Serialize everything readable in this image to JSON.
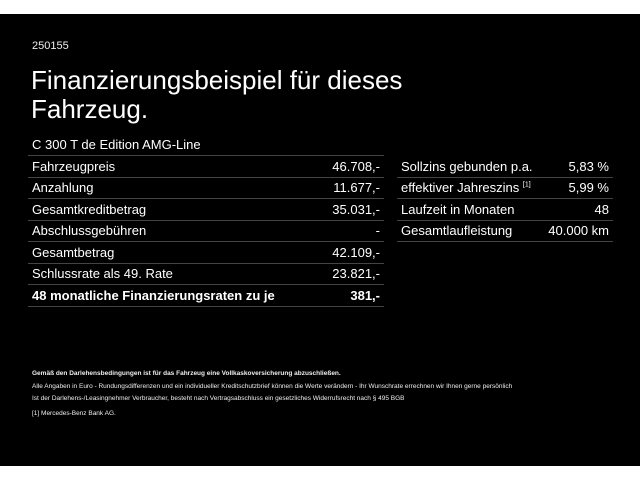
{
  "code": "250155",
  "title": "Finanzierungsbeispiel für dieses Fahrzeug.",
  "model": "C 300 T de Edition AMG-Line",
  "left_rows": [
    {
      "label": "Fahrzeugpreis",
      "value": "46.708,-"
    },
    {
      "label": "Anzahlung",
      "value": "11.677,-"
    },
    {
      "label": "Gesamtkreditbetrag",
      "value": "35.031,-"
    },
    {
      "label": "Abschlussgebühren",
      "value": "-"
    },
    {
      "label": "Gesamtbetrag",
      "value": "42.109,-"
    },
    {
      "label": "Schlussrate als 49. Rate",
      "value": "23.821,-"
    },
    {
      "label": "48 monatliche Finanzierungsraten zu je",
      "value": "381,-"
    }
  ],
  "right_rows": [
    {
      "label": "Sollzins gebunden p.a.",
      "value": "5,83 %"
    },
    {
      "label": "effektiver Jahreszins",
      "sup": "[1]",
      "value": "5,99 %"
    },
    {
      "label": "Laufzeit in Monaten",
      "value": "48"
    },
    {
      "label": "Gesamtlaufleistung",
      "value": "40.000 km"
    }
  ],
  "notes": {
    "bold": "Gemäß den Darlehensbedingungen ist für das Fahrzeug eine Vollkaskoversicherung abzuschließen.",
    "line1": "Alle Angaben in Euro - Rundungsdifferenzen und ein individueller Kreditschutzbrief können die Werte verändern - Ihr Wunschrate errechnen wir Ihnen gerne persönlich",
    "line2": "Ist der Darlehens-/Leasingnehmer Verbraucher, besteht nach Vertragsabschluss ein gesetzliches Widerrufsrecht nach § 495 BGB",
    "footnote": "[1]  Mercedes-Benz Bank AG."
  }
}
